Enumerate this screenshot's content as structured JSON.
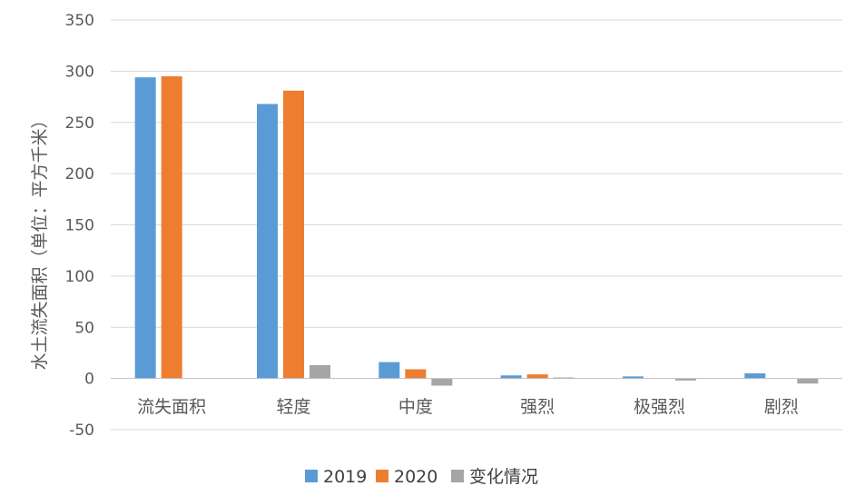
{
  "chart_data": {
    "type": "bar",
    "categories": [
      "流失面积",
      "轻度",
      "中度",
      "强烈",
      "极强烈",
      "剧烈"
    ],
    "series": [
      {
        "name": "2019",
        "values": [
          294,
          268,
          16,
          3,
          2,
          5
        ],
        "color": "#5B9BD5"
      },
      {
        "name": "2020",
        "values": [
          295,
          281,
          9,
          4,
          0,
          0
        ],
        "color": "#ED7D31"
      },
      {
        "name": "变化情况",
        "values": [
          0,
          13,
          -7,
          1,
          -2,
          -5
        ],
        "color": "#A5A5A5"
      }
    ],
    "ylabel": "水土流失面积（单位：平方千米）",
    "ylim": [
      -50,
      350
    ],
    "yticks": [
      -50,
      0,
      50,
      100,
      150,
      200,
      250,
      300,
      350
    ],
    "grid": true,
    "legend_position": "bottom"
  }
}
